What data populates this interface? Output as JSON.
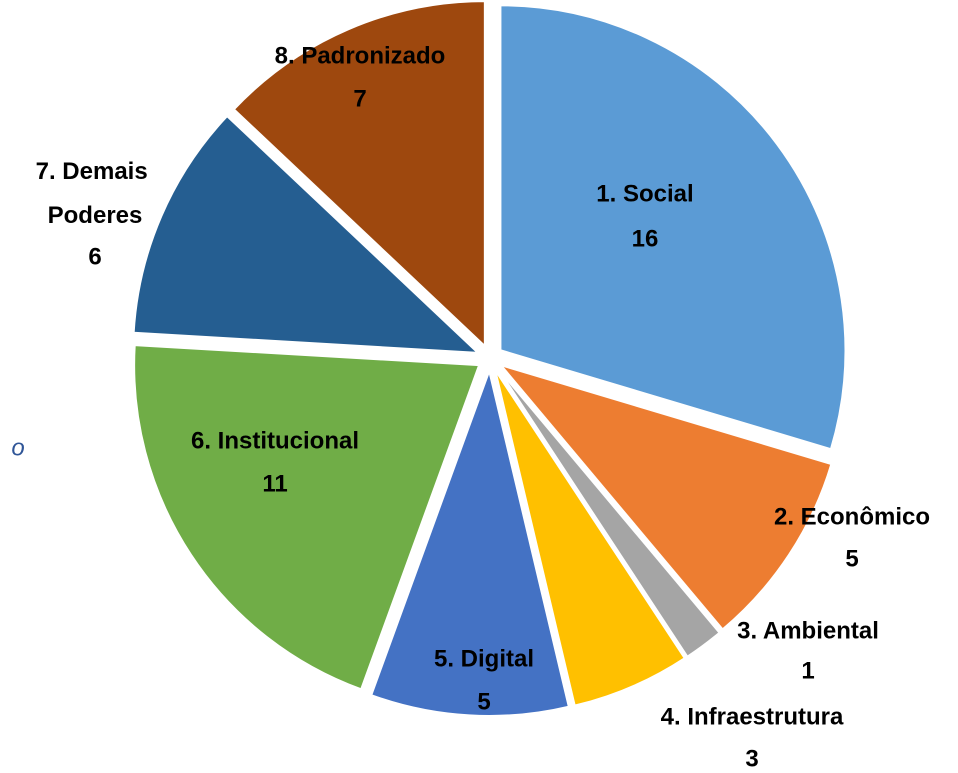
{
  "chart_data": {
    "type": "pie",
    "categories": [
      "1. Social",
      "2. Econômico",
      "3. Ambiental",
      "4. Infraestrutura",
      "5. Digital",
      "6. Institucional",
      "7. Demais Poderes",
      "8. Padronizado"
    ],
    "values": [
      16,
      5,
      1,
      3,
      5,
      11,
      6,
      7
    ],
    "colors": [
      "#5b9bd5",
      "#ed7d31",
      "#a5a5a5",
      "#ffc000",
      "#4472c4",
      "#70ad47",
      "#255e91",
      "#9e480e"
    ],
    "annotation": "o"
  }
}
